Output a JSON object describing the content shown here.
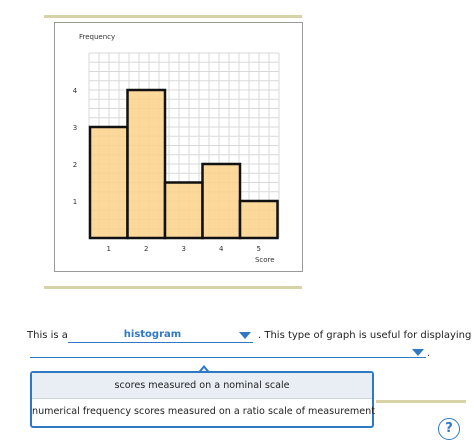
{
  "chart_data": {
    "type": "bar",
    "title": "",
    "ylabel": "Frequency",
    "xlabel": "Score",
    "categories": [
      "1",
      "2",
      "3",
      "4",
      "5"
    ],
    "values": [
      3,
      4,
      1.5,
      2,
      1
    ],
    "ylim": [
      0,
      5
    ],
    "y_ticks": [
      "1",
      "2",
      "3",
      "4"
    ],
    "grid": true,
    "bar_color": "#fcd18a",
    "bar_edge_color": "#111111",
    "grid_color": "#d9d9d9"
  },
  "question": {
    "prefix": "This is a",
    "selected_graph": "histogram",
    "middle": ". This type of graph is useful for displaying",
    "end": "."
  },
  "dropdown": {
    "options": [
      "scores measured on a nominal scale",
      "numerical frequency scores measured on a ratio scale of measurement"
    ]
  },
  "help": {
    "label": "?"
  },
  "colors": {
    "accent": "#2f78c4",
    "rule": "#d8d3a6"
  }
}
